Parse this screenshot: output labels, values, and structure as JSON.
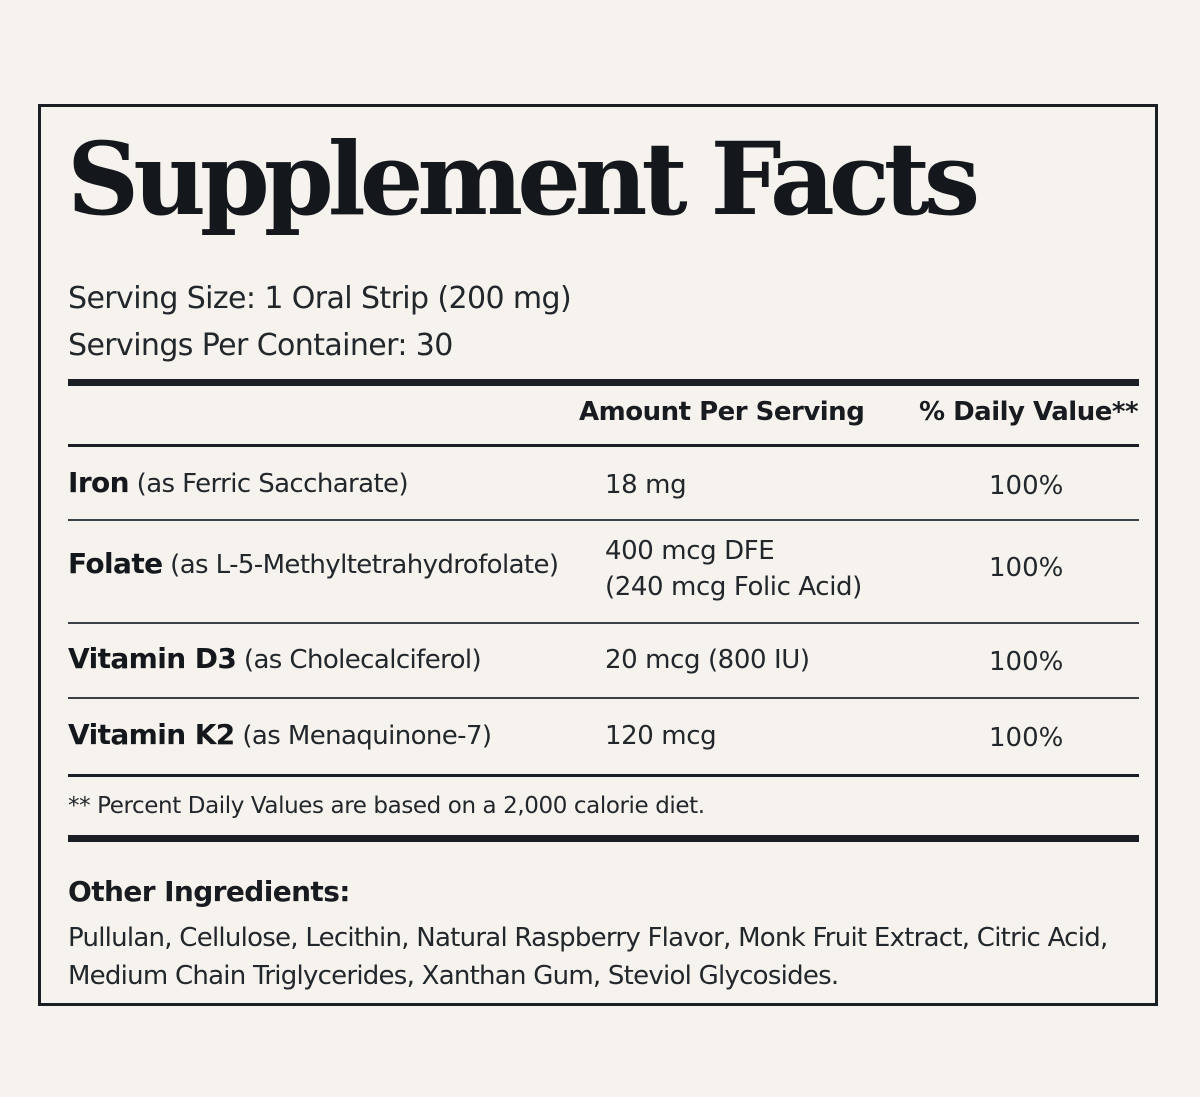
{
  "title": "Supplement Facts",
  "serving_size": "Serving Size: 1 Oral Strip (200 mg)",
  "servings_per_container": "Servings Per Container: 30",
  "headers": {
    "amount": "Amount Per Serving",
    "daily_value": "% Daily Value**"
  },
  "nutrients": [
    {
      "name": "Iron",
      "source": "(as Ferric Saccharate)",
      "amount": "18 mg",
      "amount_sub": "",
      "dv": "100%"
    },
    {
      "name": "Folate",
      "source": "(as L-5-Methyltetrahydrofolate)",
      "amount": "400 mcg DFE",
      "amount_sub": "(240 mcg Folic Acid)",
      "dv": "100%"
    },
    {
      "name": "Vitamin D3",
      "source": "(as Cholecalciferol)",
      "amount": "20 mcg (800 IU)",
      "amount_sub": "",
      "dv": "100%"
    },
    {
      "name": "Vitamin K2",
      "source": "(as Menaquinone-7)",
      "amount": "120 mcg",
      "amount_sub": "",
      "dv": "100%"
    }
  ],
  "footnote": "** Percent Daily Values are based on a 2,000 calorie diet.",
  "other_ingredients": {
    "title": "Other Ingredients:",
    "text": "Pullulan, Cellulose, Lecithin, Natural Raspberry Flavor, Monk Fruit Extract, Citric Acid, Medium Chain Triglycerides, Xanthan Gum, Steviol Glycosides."
  },
  "colors": {
    "background": "#f6f2ed",
    "ink": "#181c20"
  }
}
